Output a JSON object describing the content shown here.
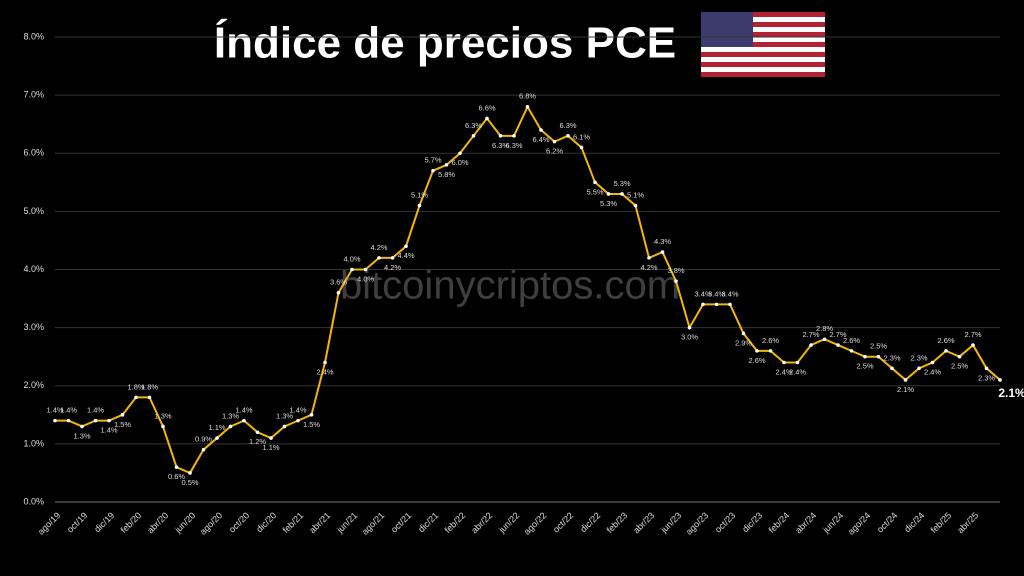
{
  "chart_data": {
    "type": "line",
    "title": "Índice de precios PCE",
    "watermark": "bitcoinycriptos.com",
    "categories": [
      "ago/19",
      null,
      "oct/19",
      null,
      "dic/19",
      null,
      "feb/20",
      null,
      "abr/20",
      null,
      "jun/20",
      null,
      "ago/20",
      null,
      "oct/20",
      null,
      "dic/20",
      null,
      "feb/21",
      null,
      "abr/21",
      null,
      "jun/21",
      null,
      "ago/21",
      null,
      "oct/21",
      null,
      "dic/21",
      null,
      "feb/22",
      null,
      "abr/22",
      null,
      "jun/22",
      null,
      "ago/22",
      null,
      "oct/22",
      null,
      "dic/22",
      null,
      "feb/23",
      null,
      "abr/23",
      null,
      "jun/23",
      null,
      "ago/23",
      null,
      "oct/23",
      null,
      "dic/23",
      null,
      "feb/24",
      null,
      "abr/24",
      null,
      "jun/24",
      null,
      "ago/24",
      null,
      "oct/24",
      null,
      "dic/24",
      null,
      "feb/25",
      null,
      "abr/25",
      null,
      null
    ],
    "series": [
      {
        "name": "PCE",
        "color": "#f2b705",
        "values": [
          1.4,
          1.4,
          1.3,
          1.4,
          1.4,
          1.5,
          1.8,
          1.8,
          1.3,
          0.6,
          0.5,
          0.9,
          1.1,
          1.3,
          1.4,
          1.2,
          1.1,
          1.3,
          1.4,
          1.5,
          2.4,
          3.6,
          4.0,
          4.0,
          4.2,
          4.2,
          4.4,
          5.1,
          5.7,
          5.8,
          6.0,
          6.3,
          6.6,
          6.3,
          6.3,
          6.8,
          6.4,
          6.2,
          6.3,
          6.1,
          5.5,
          5.3,
          5.3,
          5.1,
          4.2,
          4.3,
          3.8,
          3.0,
          3.4,
          3.4,
          3.4,
          2.9,
          2.6,
          2.6,
          2.4,
          2.4,
          2.7,
          2.8,
          2.7,
          2.6,
          2.5,
          2.5,
          2.3,
          2.1,
          2.3,
          2.4,
          2.6,
          2.5,
          2.7,
          2.3,
          2.1
        ],
        "value_labels": [
          "1.4%",
          "1.4%",
          "1.3%",
          "1.4%",
          "1.4%",
          "1.5%",
          "1.8%",
          "1.8%",
          "1.3%",
          "0.6%",
          "0.5%",
          "0.9%",
          "1.1%",
          "1.3%",
          "1.4%",
          "1.2%",
          "1.1%",
          "1.3%",
          "1.4%",
          "1.5%",
          "2.4%",
          "3.6%",
          "4.0%",
          "4.0%",
          "4.2%",
          "4.2%",
          "4.4%",
          "5.1%",
          "5.7%",
          "5.8%",
          "6.0%",
          "6.3%",
          "6.6%",
          "6.3%",
          "6.3%",
          "6.8%",
          "6.4%",
          "6.2%",
          "6.3%",
          "6.1%",
          "5.5%",
          "5.3%",
          "5.3%",
          "5.1%",
          "4.2%",
          "4.3%",
          "3.8%",
          "3.0%",
          "3.4%",
          "3.4%",
          "3.4%",
          "2.9%",
          "2.6%",
          "2.6%",
          "2.4%",
          "2.4%",
          "2.7%",
          "2.8%",
          "2.7%",
          "2.6%",
          "2.5%",
          "2.5%",
          "2.3%",
          "2.1%",
          "2.3%",
          "2.4%",
          "2.6%",
          "2.5%",
          "2.7%",
          "2.3%",
          "2.1%"
        ]
      }
    ],
    "ylim": [
      0,
      8
    ],
    "yticks": [
      {
        "value": 0,
        "label": "0.0%"
      },
      {
        "value": 1,
        "label": "1.0%"
      },
      {
        "value": 2,
        "label": "2.0%"
      },
      {
        "value": 3,
        "label": "3.0%"
      },
      {
        "value": 4,
        "label": "4.0%"
      },
      {
        "value": 5,
        "label": "5.0%"
      },
      {
        "value": 6,
        "label": "6.0%"
      },
      {
        "value": 7,
        "label": "7.0%"
      },
      {
        "value": 8,
        "label": "8.0%"
      }
    ],
    "grid": true
  }
}
